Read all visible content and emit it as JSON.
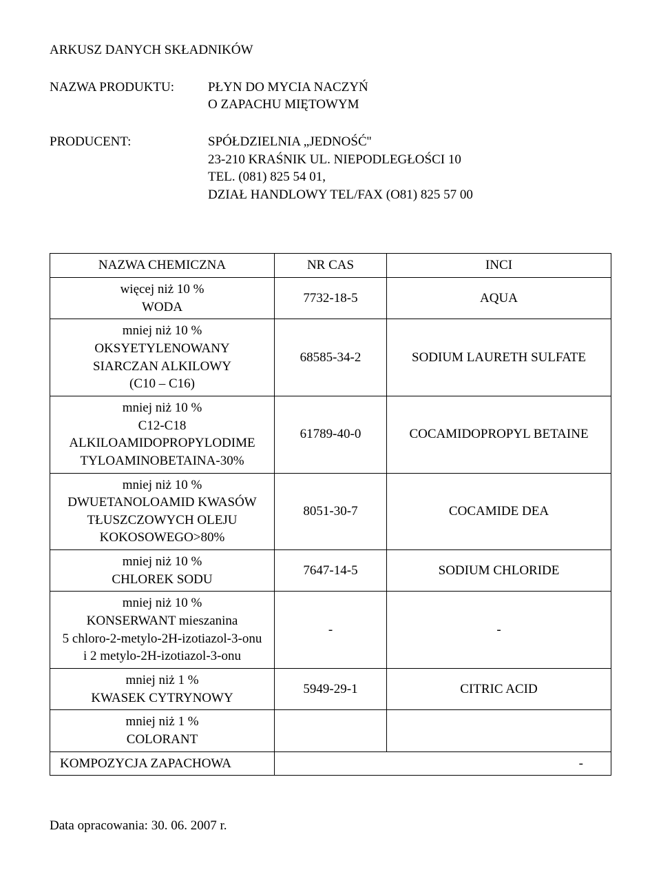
{
  "doc": {
    "title": "ARKUSZ DANYCH SKŁADNIKÓW",
    "product_label": "NAZWA PRODUKTU:",
    "product_value_l1": "PŁYN DO MYCIA NACZYŃ",
    "product_value_l2": "O ZAPACHU MIĘTOWYM",
    "producer_label": "PRODUCENT:",
    "producer_l1": "SPÓŁDZIELNIA „JEDNOŚĆ''",
    "producer_l2": "23-210 KRAŚNIK UL. NIEPODLEGŁOŚCI 10",
    "producer_l3": "TEL. (081) 825 54 01,",
    "producer_l4": " DZIAŁ HANDLOWY  TEL/FAX (O81) 825 57 00",
    "footer": "Data opracowania: 30. 06. 2007 r."
  },
  "table": {
    "headers": {
      "h1": "NAZWA CHEMICZNA",
      "h2": "NR CAS",
      "h3": "INCI"
    },
    "rows": [
      {
        "name": "więcej niż 10 %\nWODA",
        "cas": "7732-18-5",
        "inci": "AQUA"
      },
      {
        "name": "mniej niż 10 %\nOKSYETYLENOWANY\nSIARCZAN ALKILOWY\n(C10 – C16)",
        "cas": "68585-34-2",
        "inci": "SODIUM LAURETH SULFATE"
      },
      {
        "name": "mniej niż 10 %\nC12-C18\nALKILOAMIDOPROPYLODIME\nTYLOAMINOBETAINA-30%",
        "cas": "61789-40-0",
        "inci": "COCAMIDOPROPYL BETAINE"
      },
      {
        "name": "mniej niż 10 %\nDWUETANOLOAMID KWASÓW\nTŁUSZCZOWYCH OLEJU\nKOKOSOWEGO>80%",
        "cas": "8051-30-7",
        "inci": "COCAMIDE DEA"
      },
      {
        "name": "mniej niż 10 %\nCHLOREK SODU",
        "cas": "7647-14-5",
        "inci": "SODIUM CHLORIDE"
      },
      {
        "name": "mniej niż 10 %\nKONSERWANT mieszanina\n5 chloro-2-metylo-2H-izotiazol-3-onu\ni 2 metylo-2H-izotiazol-3-onu",
        "cas": "-",
        "inci": "-"
      },
      {
        "name": "mniej niż 1 %\nKWASEK CYTRYNOWY",
        "cas": "5949-29-1",
        "inci": "CITRIC ACID"
      },
      {
        "name": "mniej niż 1 %\nCOLORANT",
        "cas": "",
        "inci": ""
      }
    ],
    "last": {
      "name": "KOMPOZYCJA ZAPACHOWA",
      "inci": "-"
    }
  }
}
